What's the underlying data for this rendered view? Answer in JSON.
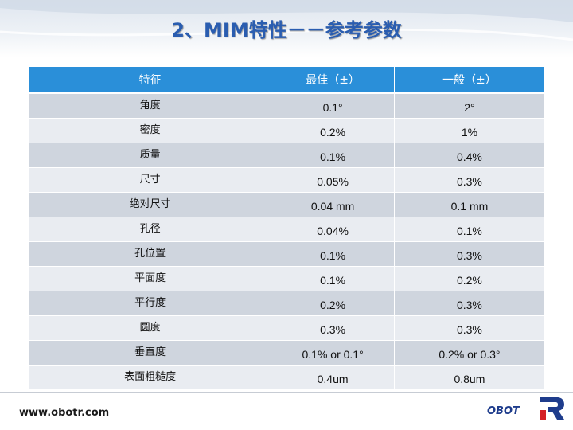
{
  "title": "2、MIM特性－－参考参数",
  "table": {
    "headers": [
      "特征",
      "最佳（±）",
      "一般（±）"
    ],
    "rows": [
      [
        "角度",
        "0.1°",
        "2°"
      ],
      [
        "密度",
        "0.2%",
        "1%"
      ],
      [
        "质量",
        "0.1%",
        "0.4%"
      ],
      [
        "尺寸",
        "0.05%",
        "0.3%"
      ],
      [
        "绝对尺寸",
        "0.04 mm",
        "0.1 mm"
      ],
      [
        "孔径",
        "0.04%",
        "0.1%"
      ],
      [
        "孔位置",
        "0.1%",
        "0.3%"
      ],
      [
        "平面度",
        "0.1%",
        "0.2%"
      ],
      [
        "平行度",
        "0.2%",
        "0.3%"
      ],
      [
        "圆度",
        "0.3%",
        "0.3%"
      ],
      [
        "垂直度",
        "0.1% or 0.1°",
        "0.2% or 0.3°"
      ],
      [
        "表面粗糙度",
        "0.4um",
        "0.8um"
      ]
    ]
  },
  "footer": {
    "url": "www.obotr.com",
    "logo_text": "OBOT"
  },
  "colors": {
    "header_blue": "#2a8fd9",
    "title_blue": "#2a5db0",
    "row_dark": "#cfd5de",
    "row_light": "#e9ecf1",
    "logo_red": "#d42027",
    "logo_navy": "#1e3c8c"
  }
}
